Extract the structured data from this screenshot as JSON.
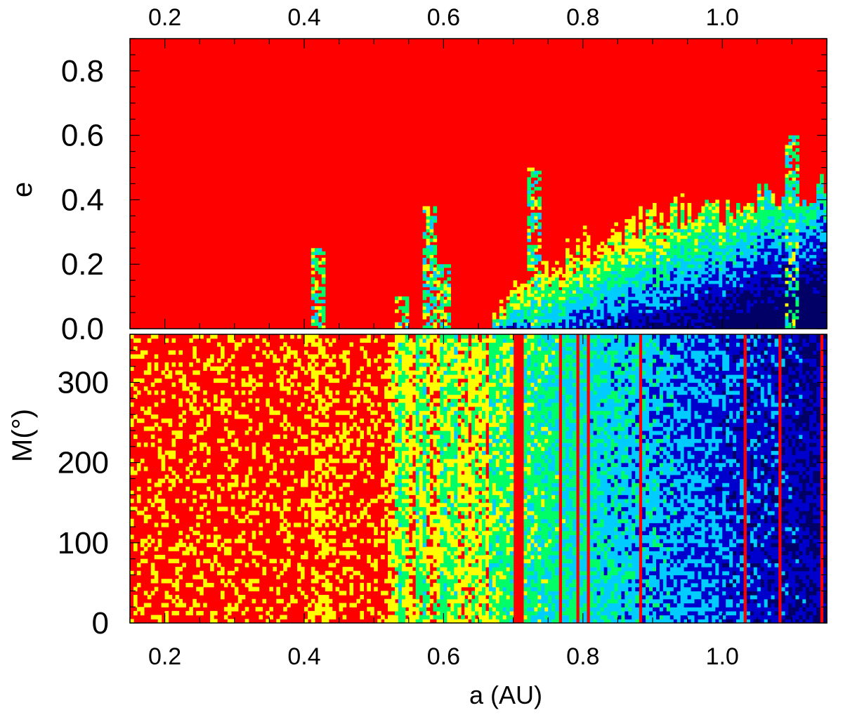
{
  "chart_data": [
    {
      "type": "heatmap",
      "panel": "top",
      "xlabel": "",
      "ylabel": "e",
      "xlim": [
        0.15,
        1.15
      ],
      "ylim": [
        0.0,
        0.9
      ],
      "x_ticks": [
        "0.2",
        "0.4",
        "0.6",
        "0.8",
        "1.0"
      ],
      "x_tick_values": [
        0.2,
        0.4,
        0.6,
        0.8,
        1.0
      ],
      "y_ticks": [
        "0.0",
        "0.2",
        "0.4",
        "0.6",
        "0.8"
      ],
      "y_tick_values": [
        0.0,
        0.2,
        0.4,
        0.6,
        0.8
      ],
      "top_axis_ticks": [
        "0.2",
        "0.4",
        "0.6",
        "0.8",
        "1.0"
      ],
      "colormap": [
        "#000066",
        "#0000cc",
        "#00ccff",
        "#00ff66",
        "#ffff00",
        "#ff0000"
      ],
      "background_color": "#ff0000",
      "stable_region": {
        "inner_edge_a": 0.67,
        "boundary_e": [
          {
            "a": 0.67,
            "e": 0.05
          },
          {
            "a": 0.7,
            "e": 0.18
          },
          {
            "a": 0.75,
            "e": 0.2
          },
          {
            "a": 0.8,
            "e": 0.3
          },
          {
            "a": 0.85,
            "e": 0.3
          },
          {
            "a": 0.9,
            "e": 0.34
          },
          {
            "a": 0.95,
            "e": 0.38
          },
          {
            "a": 1.0,
            "e": 0.38
          },
          {
            "a": 1.05,
            "e": 0.4
          },
          {
            "a": 1.1,
            "e": 0.43
          },
          {
            "a": 1.15,
            "e": 0.45
          }
        ],
        "islands": [
          {
            "a": 0.42,
            "e_max": 0.25
          },
          {
            "a": 0.54,
            "e_max": 0.1
          },
          {
            "a": 0.58,
            "e_max": 0.38
          },
          {
            "a": 0.6,
            "e_max": 0.2
          },
          {
            "a": 0.73,
            "e_max": 0.5
          },
          {
            "a": 1.1,
            "e_max": 0.6
          }
        ]
      }
    },
    {
      "type": "heatmap",
      "panel": "bottom",
      "xlabel": "a (AU)",
      "ylabel": "M(°)",
      "xlim": [
        0.15,
        1.15
      ],
      "ylim": [
        0,
        360
      ],
      "x_ticks": [
        "0.2",
        "0.4",
        "0.6",
        "0.8",
        "1.0"
      ],
      "x_tick_values": [
        0.2,
        0.4,
        0.6,
        0.8,
        1.0
      ],
      "y_ticks": [
        "0",
        "100",
        "200",
        "300"
      ],
      "y_tick_values": [
        0,
        100,
        200,
        300
      ],
      "colormap": [
        "#000066",
        "#0000cc",
        "#00ccff",
        "#00ff66",
        "#ffff00",
        "#ff0000"
      ],
      "background_color": "#ff0000",
      "unstable_below_a": 0.52
    }
  ]
}
